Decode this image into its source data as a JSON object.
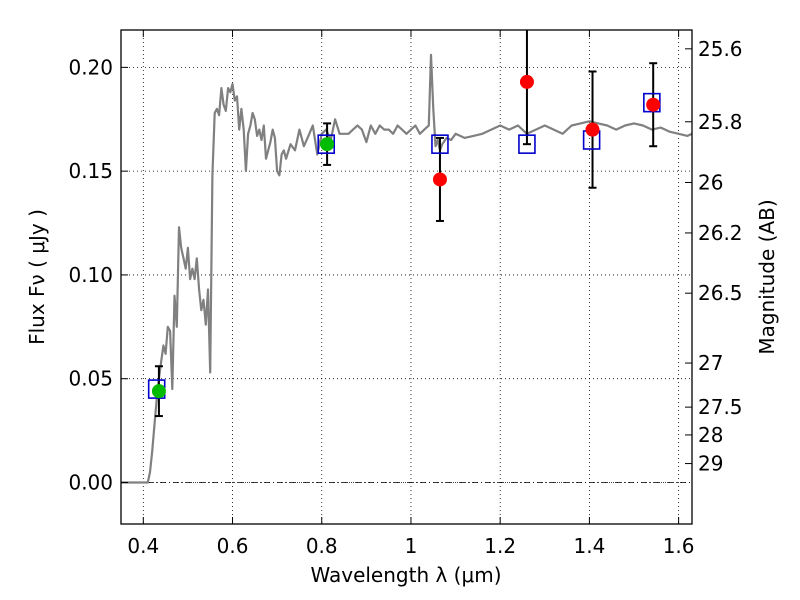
{
  "chart_data": {
    "type": "scatter",
    "xlabel": "Wavelength  λ (μm)",
    "ylabel": "Flux  Fν  ( μJy )",
    "y2label": "Magnitude (AB)",
    "xlim": [
      0.35,
      1.63
    ],
    "ylim": [
      -0.02,
      0.218
    ],
    "xticks": [
      0.4,
      0.6,
      0.8,
      1.0,
      1.2,
      1.4,
      1.6
    ],
    "xtick_labels": [
      "0.4",
      "0.6",
      "0.8",
      "1",
      "1.2",
      "1.4",
      "1.6"
    ],
    "yticks": [
      0.0,
      0.05,
      0.1,
      0.15,
      0.2
    ],
    "ytick_labels": [
      "0.00",
      "0.05",
      "0.10",
      "0.15",
      "0.20"
    ],
    "y2_ticks": [
      {
        "label": "25.6",
        "value": 25.6
      },
      {
        "label": "25.8",
        "value": 25.8
      },
      {
        "label": "26",
        "value": 26.0
      },
      {
        "label": "26.2",
        "value": 26.2
      },
      {
        "label": "26.5",
        "value": 26.5
      },
      {
        "label": "27",
        "value": 27.0
      },
      {
        "label": "27.5",
        "value": 27.5
      },
      {
        "label": "28",
        "value": 28.0
      },
      {
        "label": "29",
        "value": 29.0
      }
    ],
    "grid": true,
    "zero_line": 0.0,
    "colors": {
      "sed": "#808080",
      "model_box": "#0000cc",
      "detection_green": "#00bb00",
      "detection_red": "#ff0000",
      "errorbar": "#000000"
    },
    "series": [
      {
        "kind": "line",
        "color": "#808080",
        "x": [
          0.35,
          0.36,
          0.38,
          0.4,
          0.41,
          0.415,
          0.42,
          0.425,
          0.43,
          0.435,
          0.44,
          0.445,
          0.45,
          0.455,
          0.46,
          0.465,
          0.47,
          0.475,
          0.48,
          0.485,
          0.49,
          0.495,
          0.5,
          0.505,
          0.51,
          0.515,
          0.52,
          0.525,
          0.53,
          0.535,
          0.54,
          0.545,
          0.55,
          0.555,
          0.56,
          0.565,
          0.57,
          0.575,
          0.58,
          0.585,
          0.59,
          0.595,
          0.6,
          0.605,
          0.61,
          0.615,
          0.62,
          0.625,
          0.63,
          0.635,
          0.64,
          0.645,
          0.65,
          0.655,
          0.66,
          0.665,
          0.67,
          0.675,
          0.68,
          0.685,
          0.69,
          0.695,
          0.7,
          0.705,
          0.71,
          0.715,
          0.72,
          0.73,
          0.74,
          0.75,
          0.76,
          0.77,
          0.78,
          0.79,
          0.8,
          0.81,
          0.82,
          0.83,
          0.84,
          0.85,
          0.86,
          0.87,
          0.88,
          0.89,
          0.9,
          0.91,
          0.92,
          0.93,
          0.94,
          0.95,
          0.96,
          0.97,
          0.98,
          0.99,
          1.0,
          1.01,
          1.02,
          1.03,
          1.04,
          1.045,
          1.05,
          1.055,
          1.06,
          1.065,
          1.07,
          1.08,
          1.09,
          1.1,
          1.12,
          1.14,
          1.16,
          1.18,
          1.2,
          1.22,
          1.24,
          1.26,
          1.28,
          1.3,
          1.32,
          1.34,
          1.36,
          1.38,
          1.4,
          1.42,
          1.44,
          1.46,
          1.48,
          1.5,
          1.52,
          1.54,
          1.56,
          1.58,
          1.6,
          1.62,
          1.63
        ],
        "y": [
          0.0,
          0.0,
          0.0,
          0.0,
          0.0,
          0.005,
          0.015,
          0.028,
          0.04,
          0.05,
          0.058,
          0.066,
          0.062,
          0.075,
          0.073,
          0.045,
          0.09,
          0.075,
          0.123,
          0.113,
          0.108,
          0.103,
          0.113,
          0.098,
          0.103,
          0.098,
          0.108,
          0.093,
          0.083,
          0.088,
          0.076,
          0.093,
          0.053,
          0.148,
          0.178,
          0.18,
          0.177,
          0.19,
          0.182,
          0.179,
          0.19,
          0.188,
          0.192,
          0.184,
          0.186,
          0.17,
          0.18,
          0.17,
          0.15,
          0.168,
          0.172,
          0.178,
          0.175,
          0.167,
          0.17,
          0.165,
          0.172,
          0.156,
          0.16,
          0.164,
          0.17,
          0.166,
          0.15,
          0.148,
          0.158,
          0.16,
          0.156,
          0.163,
          0.16,
          0.17,
          0.162,
          0.167,
          0.172,
          0.158,
          0.168,
          0.17,
          0.165,
          0.175,
          0.168,
          0.168,
          0.168,
          0.17,
          0.172,
          0.17,
          0.164,
          0.172,
          0.168,
          0.172,
          0.17,
          0.17,
          0.168,
          0.172,
          0.17,
          0.168,
          0.17,
          0.172,
          0.168,
          0.17,
          0.172,
          0.206,
          0.18,
          0.162,
          0.165,
          0.16,
          0.163,
          0.166,
          0.165,
          0.168,
          0.166,
          0.167,
          0.168,
          0.17,
          0.172,
          0.17,
          0.172,
          0.168,
          0.17,
          0.172,
          0.17,
          0.168,
          0.172,
          0.173,
          0.174,
          0.173,
          0.172,
          0.17,
          0.172,
          0.173,
          0.172,
          0.17,
          0.171,
          0.169,
          0.168,
          0.167,
          0.168
        ]
      },
      {
        "kind": "square",
        "color": "#0000cc",
        "x": [
          0.43,
          0.81,
          1.065,
          1.26,
          1.405,
          1.54
        ],
        "y": [
          0.045,
          0.163,
          0.163,
          0.163,
          0.165,
          0.183
        ]
      },
      {
        "kind": "point",
        "color": "#00bb00",
        "x": [
          0.435,
          0.812
        ],
        "y": [
          0.044,
          0.163
        ],
        "yerr": [
          0.012,
          0.01
        ]
      },
      {
        "kind": "point",
        "color": "#ff0000",
        "x": [
          1.065,
          1.26,
          1.407,
          1.543
        ],
        "y": [
          0.146,
          0.193,
          0.17,
          0.182
        ],
        "yerr": [
          0.02,
          0.03,
          0.028,
          0.02
        ]
      }
    ]
  }
}
